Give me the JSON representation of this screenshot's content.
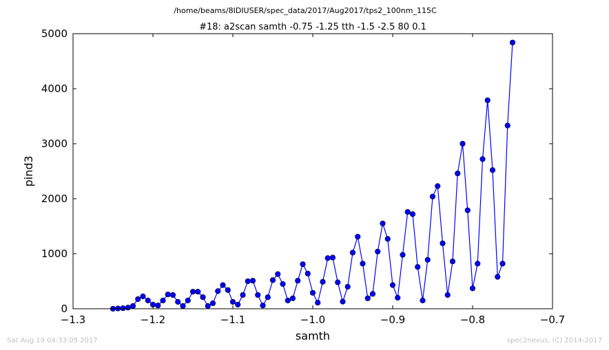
{
  "chart_data": {
    "type": "line",
    "suptitle": "/home/beams/8IDIUSER/spec_data/2017/Aug2017/tps2_100nm_115C",
    "title": "#18: a2scan  samth -0.75 -1.25  tth -1.5 -2.5  80 0.1",
    "xlabel": "samth",
    "ylabel": "pind3",
    "xlim": [
      -1.3,
      -0.7
    ],
    "ylim": [
      0,
      5000
    ],
    "xticks": [
      -1.3,
      -1.2,
      -1.1,
      -1.0,
      -0.9,
      -0.8,
      -0.7
    ],
    "yticks": [
      0,
      1000,
      2000,
      3000,
      4000,
      5000
    ],
    "xtick_labels": [
      "−1.3",
      "−1.2",
      "−1.1",
      "−1.0",
      "−0.9",
      "−0.8",
      "−0.7"
    ],
    "ytick_labels": [
      "0",
      "1000",
      "2000",
      "3000",
      "4000",
      "5000"
    ],
    "grid": false,
    "color": "#0000ff",
    "series": [
      {
        "x": [
          -1.25,
          -1.24375,
          -1.2375,
          -1.23125,
          -1.225,
          -1.21875,
          -1.2125,
          -1.20625,
          -1.2,
          -1.19375,
          -1.1875,
          -1.18125,
          -1.175,
          -1.16875,
          -1.1625,
          -1.15625,
          -1.15,
          -1.14375,
          -1.1375,
          -1.13125,
          -1.125,
          -1.11875,
          -1.1125,
          -1.10625,
          -1.1,
          -1.09375,
          -1.0875,
          -1.08125,
          -1.075,
          -1.06875,
          -1.0625,
          -1.05625,
          -1.05,
          -1.04375,
          -1.0375,
          -1.03125,
          -1.025,
          -1.01875,
          -1.0125,
          -1.00625,
          -1.0,
          -0.99375,
          -0.9875,
          -0.98125,
          -0.975,
          -0.96875,
          -0.9625,
          -0.95625,
          -0.95,
          -0.94375,
          -0.9375,
          -0.93125,
          -0.925,
          -0.91875,
          -0.9125,
          -0.90625,
          -0.9,
          -0.89375,
          -0.8875,
          -0.88125,
          -0.875,
          -0.86875,
          -0.8625,
          -0.85625,
          -0.85,
          -0.84375,
          -0.8375,
          -0.83125,
          -0.825,
          -0.81875,
          -0.8125,
          -0.80625,
          -0.8,
          -0.79375,
          -0.7875,
          -0.78125,
          -0.775,
          -0.76875,
          -0.7625,
          -0.75625,
          -0.75
        ],
        "y": [
          0,
          5,
          10,
          20,
          50,
          175,
          225,
          150,
          75,
          60,
          150,
          260,
          250,
          125,
          50,
          150,
          310,
          310,
          210,
          50,
          100,
          320,
          430,
          340,
          125,
          75,
          250,
          500,
          510,
          250,
          60,
          210,
          520,
          630,
          450,
          150,
          190,
          510,
          810,
          640,
          290,
          110,
          490,
          920,
          930,
          480,
          130,
          400,
          1020,
          1310,
          820,
          190,
          270,
          1040,
          1550,
          1270,
          430,
          200,
          980,
          1760,
          1720,
          760,
          150,
          890,
          2040,
          2230,
          1190,
          250,
          860,
          2460,
          3000,
          1790,
          370,
          820,
          2720,
          3790,
          2520,
          580,
          820,
          3330,
          4840
        ]
      }
    ],
    "footer_left": "Sat Aug 19 04:33:05 2017",
    "footer_right": "spec2nexus, (C) 2014-2017"
  }
}
